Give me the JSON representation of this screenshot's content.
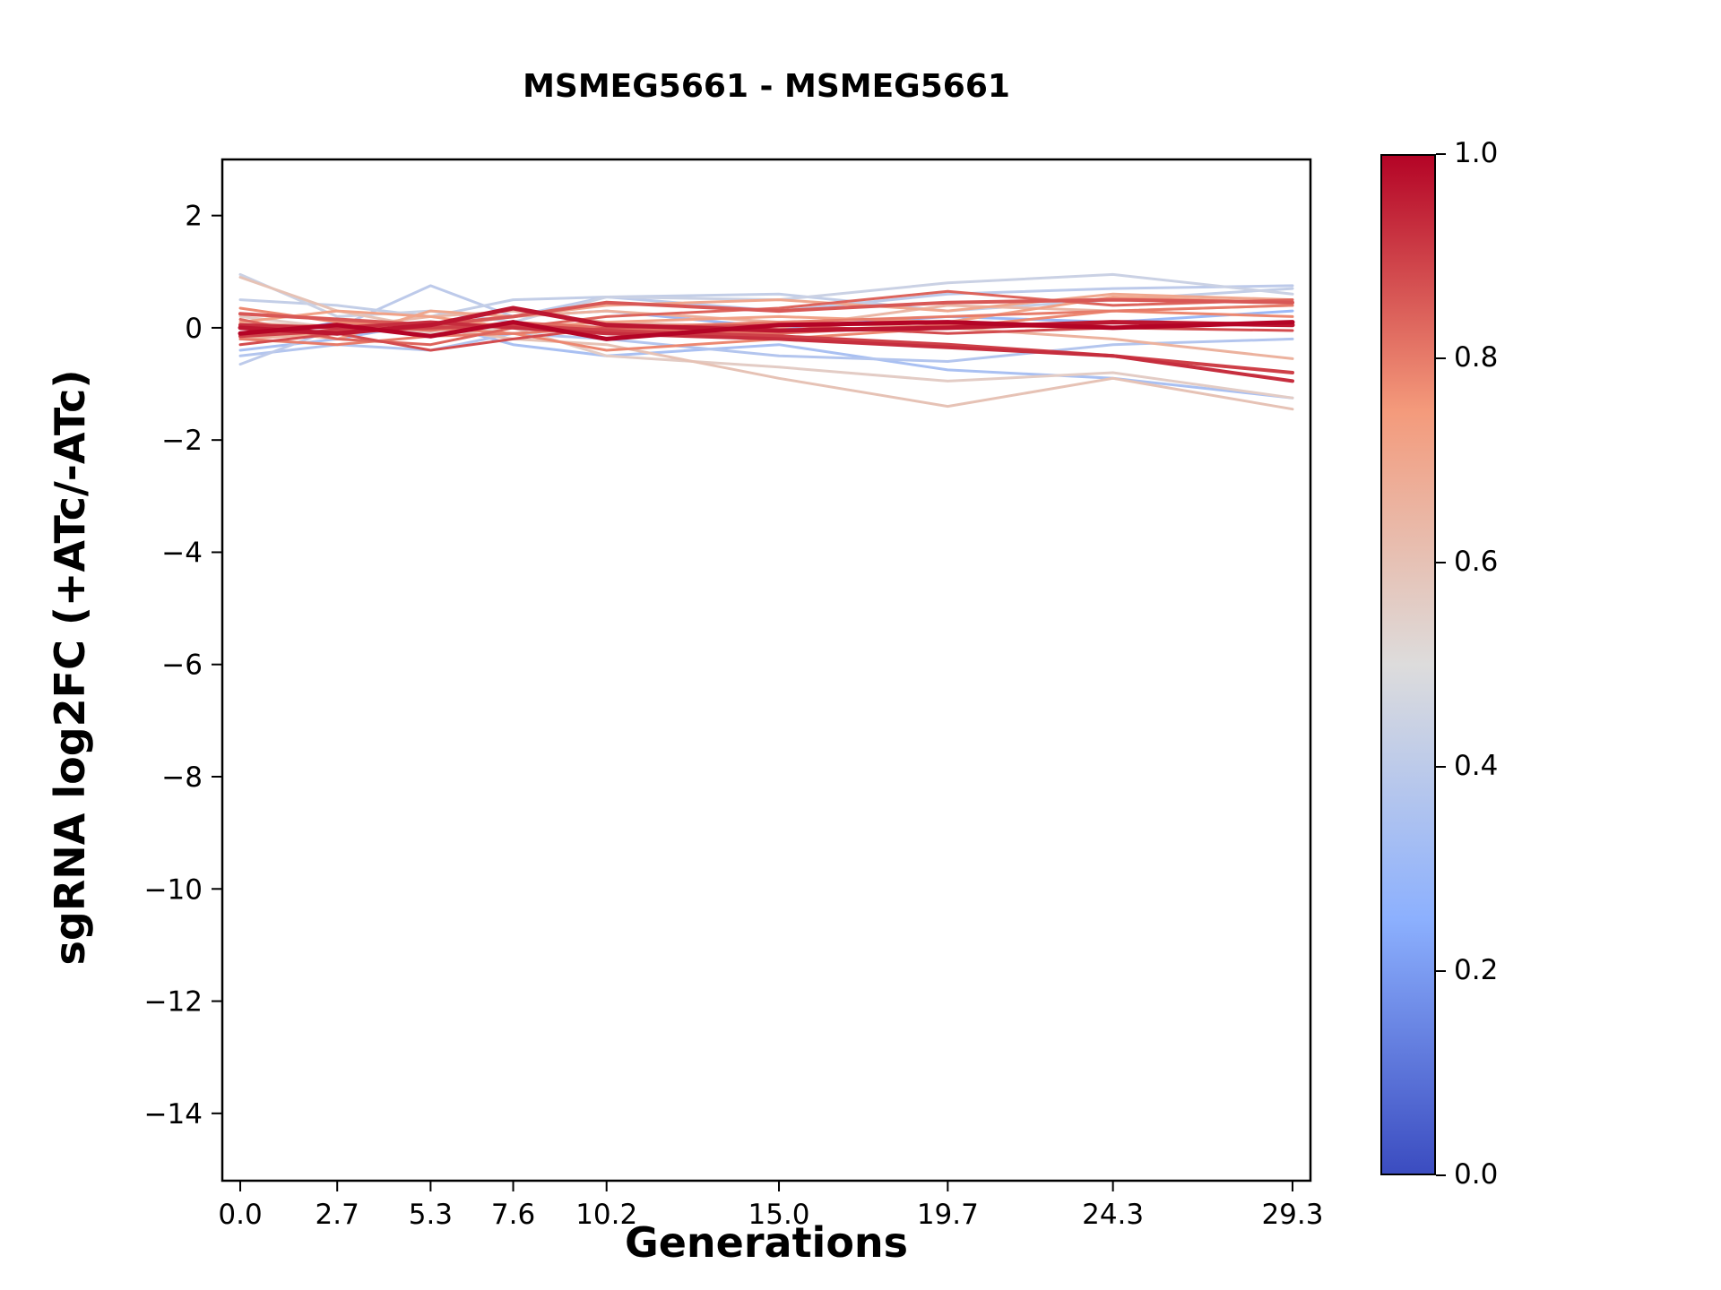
{
  "title": "MSMEG5661 - MSMEG5661",
  "chart_data": {
    "type": "line",
    "title": "MSMEG5661 - MSMEG5661",
    "xlabel": "Generations",
    "ylabel": "sgRNA log2FC (+ATc/-ATc)",
    "x": [
      0.0,
      2.7,
      5.3,
      7.6,
      10.2,
      15.0,
      19.7,
      24.3,
      29.3
    ],
    "x_tick_labels": [
      "0.0",
      "2.7",
      "5.3",
      "7.6",
      "10.2",
      "15.0",
      "19.7",
      "24.3",
      "29.3"
    ],
    "y_ticks": [
      2,
      0,
      -2,
      -4,
      -6,
      -8,
      -10,
      -12,
      -14
    ],
    "y_tick_labels": [
      "2",
      "0",
      "−2",
      "−4",
      "−6",
      "−8",
      "−10",
      "−12",
      "−14"
    ],
    "xlim": [
      -0.5,
      29.8
    ],
    "ylim": [
      -15.2,
      3.0
    ],
    "grid": false,
    "legend": "none",
    "series": [
      {
        "color_value": 0.3,
        "width": 3,
        "values": [
          -0.2,
          0.1,
          0.0,
          0.2,
          0.3,
          0.0,
          0.2,
          0.1,
          0.3
        ]
      },
      {
        "color_value": 0.34,
        "width": 3,
        "values": [
          -0.4,
          -0.2,
          0.1,
          -0.3,
          -0.5,
          -0.3,
          -0.75,
          -0.9,
          -1.25
        ]
      },
      {
        "color_value": 0.37,
        "width": 3,
        "values": [
          -0.5,
          -0.3,
          -0.4,
          -0.1,
          -0.2,
          -0.5,
          -0.6,
          -0.3,
          -0.2
        ]
      },
      {
        "color_value": 0.4,
        "width": 3,
        "values": [
          -0.65,
          0.0,
          0.75,
          0.2,
          0.55,
          0.3,
          0.6,
          0.7,
          0.75
        ]
      },
      {
        "color_value": 0.42,
        "width": 3,
        "values": [
          0.5,
          0.4,
          0.2,
          0.5,
          0.55,
          0.6,
          0.3,
          0.5,
          0.7
        ]
      },
      {
        "color_value": 0.44,
        "width": 3,
        "values": [
          0.95,
          0.2,
          0.3,
          0.1,
          0.55,
          0.5,
          0.8,
          0.95,
          0.6
        ]
      },
      {
        "color_value": 0.56,
        "width": 3,
        "values": [
          0.2,
          0.0,
          -0.1,
          0.0,
          -0.5,
          -0.7,
          -0.95,
          -0.8,
          -1.25
        ]
      },
      {
        "color_value": 0.6,
        "width": 3,
        "values": [
          0.9,
          0.3,
          0.0,
          -0.2,
          -0.3,
          -0.9,
          -1.4,
          -0.9,
          -1.45
        ]
      },
      {
        "color_value": 0.64,
        "width": 3,
        "values": [
          0.1,
          0.0,
          0.2,
          0.3,
          0.1,
          0.0,
          0.4,
          0.3,
          0.4
        ]
      },
      {
        "color_value": 0.66,
        "width": 3,
        "values": [
          -0.2,
          -0.1,
          0.0,
          0.2,
          0.3,
          0.1,
          0.0,
          -0.2,
          -0.55
        ]
      },
      {
        "color_value": 0.7,
        "width": 3,
        "values": [
          0.0,
          -0.2,
          0.3,
          0.2,
          0.4,
          0.5,
          0.3,
          0.6,
          0.5
        ]
      },
      {
        "color_value": 0.72,
        "width": 3,
        "values": [
          0.1,
          0.3,
          0.2,
          0.0,
          0.1,
          0.2,
          0.1,
          0.55,
          0.45
        ]
      },
      {
        "color_value": 0.78,
        "width": 3,
        "values": [
          0.35,
          0.1,
          0.0,
          -0.1,
          -0.4,
          -0.2,
          0.0,
          0.3,
          0.2
        ]
      },
      {
        "color_value": 0.8,
        "width": 3,
        "values": [
          -0.2,
          -0.3,
          -0.15,
          -0.1,
          0.0,
          0.1,
          0.2,
          0.3,
          0.4
        ]
      },
      {
        "color_value": 0.82,
        "width": 3,
        "values": [
          0.0,
          0.05,
          -0.05,
          0.1,
          0.0,
          -0.1,
          0.05,
          0.0,
          0.1
        ]
      },
      {
        "color_value": 0.84,
        "width": 3,
        "values": [
          0.15,
          -0.2,
          -0.3,
          0.0,
          0.2,
          0.35,
          0.65,
          0.4,
          0.5
        ]
      },
      {
        "color_value": 0.86,
        "width": 4,
        "values": [
          0.25,
          0.15,
          0.05,
          0.2,
          0.45,
          0.3,
          0.45,
          0.5,
          0.45
        ]
      },
      {
        "color_value": 0.88,
        "width": 3,
        "values": [
          -0.3,
          -0.1,
          -0.4,
          -0.2,
          0.0,
          0.05,
          -0.1,
          0.0,
          -0.05
        ]
      },
      {
        "color_value": 0.9,
        "width": 4,
        "values": [
          -0.15,
          -0.05,
          0.0,
          0.05,
          -0.05,
          -0.15,
          -0.3,
          -0.5,
          -0.8
        ]
      },
      {
        "color_value": 0.93,
        "width": 4,
        "values": [
          0.05,
          0.0,
          0.1,
          0.0,
          -0.1,
          -0.2,
          -0.35,
          -0.5,
          -0.95
        ]
      },
      {
        "color_value": 0.97,
        "width": 5,
        "values": [
          0.0,
          -0.1,
          0.05,
          0.35,
          0.05,
          -0.05,
          0.0,
          0.1,
          0.05
        ]
      },
      {
        "color_value": 1.0,
        "width": 5,
        "values": [
          -0.1,
          0.05,
          -0.15,
          0.1,
          -0.2,
          0.05,
          0.1,
          0.0,
          0.1
        ]
      }
    ],
    "colorbar": {
      "tick_labels": [
        "1.0",
        "0.8",
        "0.6",
        "0.4",
        "0.2",
        "0.0"
      ],
      "tick_values": [
        1.0,
        0.8,
        0.6,
        0.4,
        0.2,
        0.0
      ],
      "cmap_name": "coolwarm",
      "cmap_stops": [
        {
          "t": 0.0,
          "color": "#3b4cc0"
        },
        {
          "t": 0.25,
          "color": "#8cb0fe"
        },
        {
          "t": 0.5,
          "color": "#dddcdc"
        },
        {
          "t": 0.75,
          "color": "#f49a7b"
        },
        {
          "t": 1.0,
          "color": "#b40426"
        }
      ]
    }
  }
}
